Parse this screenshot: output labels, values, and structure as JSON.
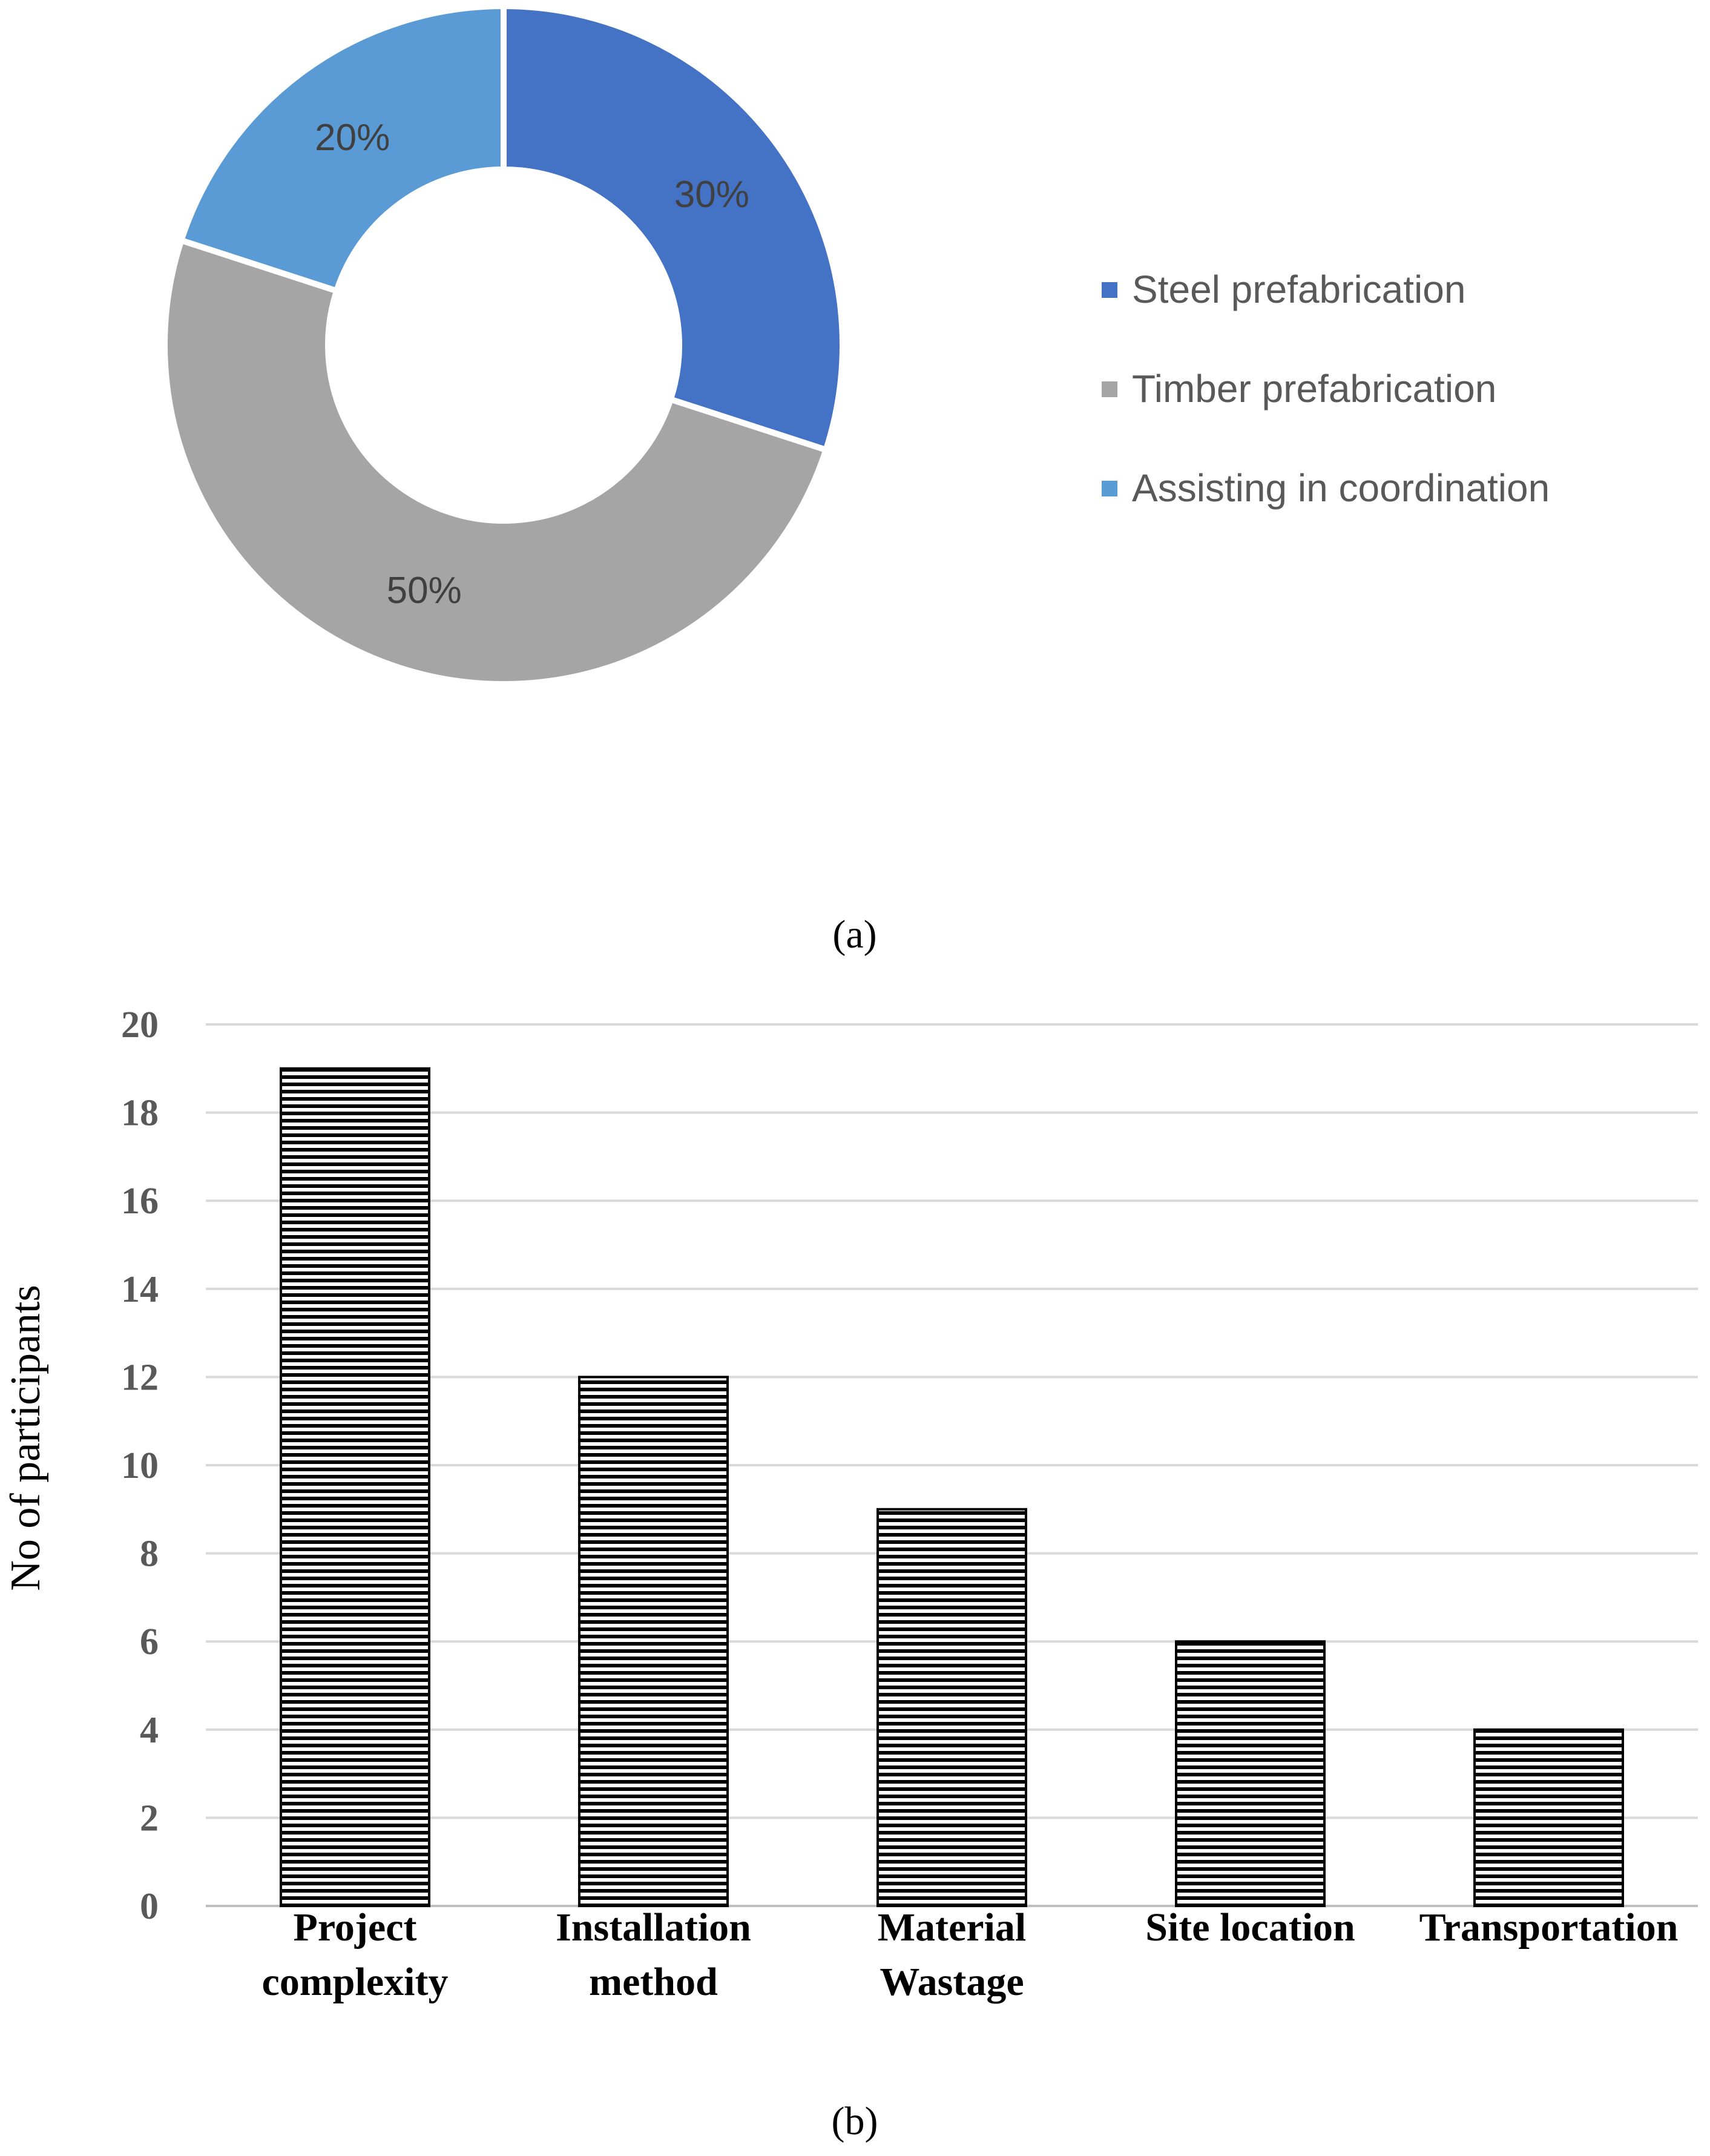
{
  "chart_data": [
    {
      "type": "pie",
      "variant": "donut",
      "panel": "a",
      "categories": [
        "Steel prefabrication",
        "Timber prefabrication",
        "Assisting in coordination"
      ],
      "values": [
        30,
        50,
        20
      ],
      "labels": [
        "30%",
        "50%",
        "20%"
      ],
      "colors": [
        "#4472C4",
        "#A5A5A5",
        "#5B9BD5"
      ],
      "legend_position": "right",
      "caption": "(a)"
    },
    {
      "type": "bar",
      "panel": "b",
      "categories": [
        [
          "Project",
          "complexity"
        ],
        [
          "Installation",
          "method"
        ],
        [
          "Material",
          "Wastage"
        ],
        [
          "Site location"
        ],
        [
          "Transportation"
        ]
      ],
      "values": [
        19,
        12,
        9,
        6,
        4
      ],
      "ylabel": "No of participants",
      "xlabel": "",
      "ylim": [
        0,
        20
      ],
      "yticks": [
        "0",
        "2",
        "4",
        "6",
        "8",
        "10",
        "12",
        "14",
        "16",
        "18",
        "20"
      ],
      "grid": true,
      "fill_pattern": "horizontal-stripes",
      "caption": "(b)"
    }
  ]
}
